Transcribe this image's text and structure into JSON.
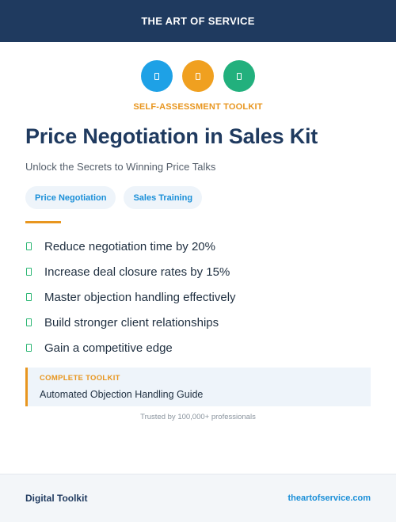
{
  "header": {
    "brand": "THE ART OF SERVICE"
  },
  "icons": [
    {
      "name": "book-icon",
      "color": "#1ea1e6"
    },
    {
      "name": "clipboard-icon",
      "color": "#f0a020"
    },
    {
      "name": "check-document-icon",
      "color": "#22b07d"
    }
  ],
  "eyebrow": "SELF-ASSESSMENT TOOLKIT",
  "title": "Price Negotiation in Sales Kit",
  "subtitle": "Unlock the Secrets to Winning Price Talks",
  "tags": [
    "Price Negotiation",
    "Sales Training"
  ],
  "benefits": [
    "Reduce negotiation time by 20%",
    "Increase deal closure rates by 15%",
    "Master objection handling effectively",
    "Build stronger client relationships",
    "Gain a competitive edge"
  ],
  "callout": {
    "label": "COMPLETE TOOLKIT",
    "text": "Automated Objection Handling Guide"
  },
  "trusted": "Trusted by 100,000+ professionals",
  "footer": {
    "left": "Digital Toolkit",
    "right": "theartofservice.com"
  },
  "colors": {
    "navy": "#1f3a5f",
    "accent_orange": "#e8961f",
    "accent_blue": "#1a8fd8",
    "check_green": "#2bb673"
  }
}
